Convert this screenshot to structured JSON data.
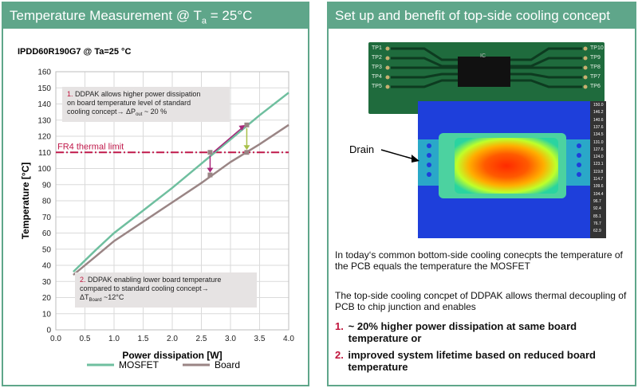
{
  "left_panel": {
    "title": "Temperature Measurement @ T",
    "title_sub": "a",
    "title_tail": " = 25°C"
  },
  "chart_data": {
    "type": "line",
    "subtitle": "IPDD60R190G7 @  Ta=25 °C",
    "xlabel": "Power dissipation [W]",
    "ylabel": "Temperature [°C]",
    "xlim": [
      0,
      4.0
    ],
    "ylim": [
      0,
      160
    ],
    "xticks": [
      "0.0",
      "0.5",
      "1.0",
      "1.5",
      "2.0",
      "2.5",
      "3.0",
      "3.5",
      "4.0"
    ],
    "yticks": [
      "0",
      "10",
      "20",
      "30",
      "40",
      "50",
      "60",
      "70",
      "80",
      "90",
      "100",
      "110",
      "120",
      "130",
      "140",
      "150",
      "160"
    ],
    "grid": true,
    "legend_position": "bottom",
    "series": [
      {
        "name": "MOSFET",
        "color": "#6fbf9f",
        "x": [
          0.3,
          0.7,
          1.0,
          1.5,
          2.0,
          2.5,
          3.0,
          3.5,
          4.0
        ],
        "y": [
          36,
          50,
          60,
          74,
          88,
          103,
          118,
          133,
          147
        ]
      },
      {
        "name": "Board",
        "color": "#9a8585",
        "x": [
          0.3,
          0.7,
          1.0,
          1.5,
          2.0,
          2.5,
          3.0,
          3.5,
          4.0
        ],
        "y": [
          34,
          46,
          55,
          67,
          79,
          91,
          104,
          115,
          127
        ]
      }
    ],
    "thermal_limit": {
      "label": "FR4 thermal limit",
      "value": 110,
      "color": "#c0184a"
    },
    "annotations": [
      {
        "number": "1.",
        "text": "DDPAK allows higher power dissipation on board temperature level of standard cooling concept→ ΔP",
        "sub": "out",
        "tail": " ~ 20 %"
      },
      {
        "number": "2.",
        "text": "DDPAK enabling lower board temperature compared to standard cooling concept→ ΔT",
        "sub": "Board",
        "tail": " ~12°C"
      }
    ],
    "markers": [
      {
        "x": 2.65,
        "y": 110
      },
      {
        "x": 2.65,
        "y": 96
      },
      {
        "x": 3.28,
        "y": 127
      },
      {
        "x": 3.28,
        "y": 110
      }
    ]
  },
  "right_panel": {
    "title": "Set up and benefit of top-side cooling concept",
    "pcb_labels_left": [
      "TP1",
      "TP2",
      "TP3",
      "TP4",
      "TP5"
    ],
    "pcb_labels_right": [
      "TP10",
      "TP9",
      "TP8",
      "TP7",
      "TP6"
    ],
    "chip_label": "IC",
    "drain_label": "Drain",
    "scale_values": [
      "150.0",
      "146.2",
      "140.6",
      "137.6",
      "134.5",
      "131.0",
      "127.6",
      "124.0",
      "123.1",
      "119.8",
      "114.7",
      "109.6",
      "104.4",
      "96.7",
      "92.4",
      "85.1",
      "76.7",
      "62.9"
    ],
    "paragraph1": "In today‘s common bottom-side cooling conecpts the temperature of the PCB equals the temperature the MOSFET",
    "paragraph2": "The top-side cooling concpet of DDPAK allows thermal decoupling  of PCB to chip junction  and enables",
    "benefits": [
      {
        "number": "1.",
        "text": "~ 20% higher power dissipation at same board temperature or"
      },
      {
        "number": "2.",
        "text": "improved system lifetime based on reduced board temperature"
      }
    ]
  }
}
